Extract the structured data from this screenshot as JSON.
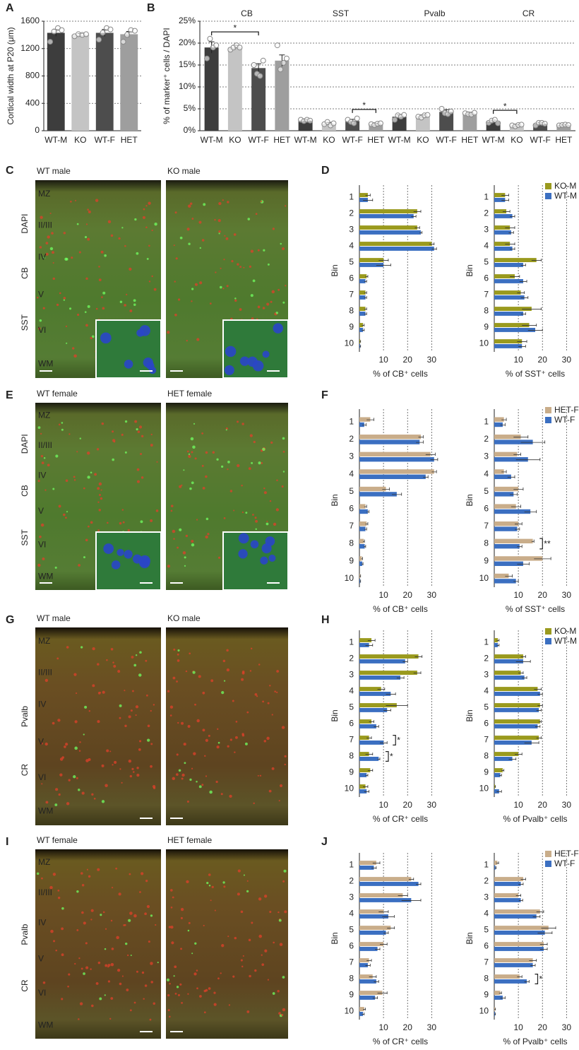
{
  "chart_data": [
    {
      "type": "bar",
      "panel": "A",
      "ylabel": "Cortical width at P20 (μm)",
      "categories": [
        "WT-M",
        "KO",
        "WT-F",
        "HET"
      ],
      "values": [
        1430,
        1400,
        1430,
        1410
      ],
      "errors": [
        50,
        20,
        50,
        40
      ],
      "points": [
        [
          1300,
          1450,
          1500,
          1470
        ],
        [
          1380,
          1410,
          1400,
          1410
        ],
        [
          1330,
          1430,
          1500,
          1480
        ],
        [
          1300,
          1400,
          1470,
          1460
        ]
      ],
      "colors": [
        "#3d3d3d",
        "#c4c4c4",
        "#4d4d4d",
        "#9e9e9e"
      ],
      "ylim": [
        0,
        1600
      ],
      "yticks": [
        0,
        400,
        800,
        1200,
        1600
      ],
      "grid": true
    },
    {
      "type": "grouped_bar",
      "panel": "B",
      "ylabel": "% of marker⁺ cells / DAPI",
      "colors": [
        "#3d3d3d",
        "#c4c4c4",
        "#4d4d4d",
        "#9e9e9e"
      ],
      "ylim": [
        0,
        25
      ],
      "yticks": [
        {
          "value": 0,
          "label": "0%"
        },
        {
          "value": 5,
          "label": "5%"
        },
        {
          "value": 10,
          "label": "10%"
        },
        {
          "value": 15,
          "label": "15%"
        },
        {
          "value": 20,
          "label": "20%"
        },
        {
          "value": 25,
          "label": "25%"
        }
      ],
      "grid": true,
      "groups": [
        {
          "name": "CB",
          "categories": [
            "WT-M",
            "KO",
            "WT-F",
            "HET"
          ],
          "values": [
            19,
            19,
            14.3,
            16
          ],
          "errors": [
            1.3,
            0.5,
            1,
            1.3
          ],
          "points": [
            [
              16.5,
              21,
              19,
              19.5
            ],
            [
              18.5,
              19,
              19.5,
              19
            ],
            [
              15,
              13,
              12.5,
              16
            ],
            [
              19.5,
              14,
              15.5,
              16.5
            ]
          ]
        },
        {
          "name": "SST",
          "categories": [
            "WT-M",
            "KO",
            "WT-F",
            "HET"
          ],
          "values": [
            2.3,
            1.6,
            2.2,
            1.5
          ],
          "errors": [
            0.3,
            0.3,
            0.4,
            0.2
          ],
          "points": [
            [
              2.5,
              2.2,
              2.5,
              2.3
            ],
            [
              1.5,
              2,
              1.2,
              1.7
            ],
            [
              2.5,
              2,
              1.7,
              2.8
            ],
            [
              1.5,
              1.3,
              1.6,
              1.7
            ]
          ]
        },
        {
          "name": "Pvalb",
          "categories": [
            "WT-M",
            "KO",
            "WT-F",
            "HET"
          ],
          "values": [
            3.2,
            3.3,
            4.3,
            3.9
          ],
          "errors": [
            0.4,
            0.3,
            0.5,
            0.2
          ],
          "points": [
            [
              2.5,
              3.5,
              3.2,
              3.6
            ],
            [
              3.2,
              3,
              3.5,
              3.6
            ],
            [
              5,
              4,
              3.8,
              4.4
            ],
            [
              4,
              3.8,
              3.7,
              4.1
            ]
          ]
        },
        {
          "name": "CR",
          "categories": [
            "WT-M",
            "KO",
            "WT-F",
            "HET"
          ],
          "values": [
            2.1,
            1.2,
            1.6,
            1.3
          ],
          "errors": [
            0.3,
            0.2,
            0.3,
            0.1
          ],
          "points": [
            [
              1.8,
              2.3,
              2.5,
              1.7
            ],
            [
              1.2,
              1,
              1.3,
              1.4
            ],
            [
              1.2,
              1.8,
              1.8,
              1.6
            ],
            [
              1.2,
              1.3,
              1.4,
              1.3
            ]
          ]
        }
      ],
      "significance": [
        {
          "group": "CB",
          "from": "WT-M",
          "to": "WT-F",
          "label": "*"
        },
        {
          "group": "SST",
          "from": "WT-F",
          "to": "HET",
          "label": "*"
        },
        {
          "group": "CR",
          "from": "WT-M",
          "to": "KO",
          "label": "*"
        }
      ]
    },
    {
      "type": "hbar",
      "panel": "D",
      "ylabel": "Bin",
      "xlabel": "% of CB⁺ cells",
      "categories": [
        "1",
        "2",
        "3",
        "4",
        "5",
        "6",
        "7",
        "8",
        "9",
        "10"
      ],
      "xlim": [
        0,
        34
      ],
      "xticks": [
        10,
        20,
        30
      ],
      "series": [
        {
          "color": "#9a9a1e",
          "values": [
            3.5,
            24,
            24,
            30,
            10,
            3,
            2.5,
            2.5,
            1.5,
            0.3
          ],
          "errors": [
            1,
            1.5,
            1,
            1,
            2,
            0.5,
            0.5,
            0.5,
            0.5,
            0.2
          ]
        },
        {
          "color": "#3b6fc1",
          "values": [
            3.5,
            22.5,
            25.5,
            31,
            10,
            2.5,
            2.5,
            2.5,
            1.5,
            0.3
          ],
          "errors": [
            2,
            1,
            0.5,
            1,
            3,
            0.5,
            0.5,
            0.5,
            0.5,
            0.2
          ]
        }
      ]
    },
    {
      "type": "hbar",
      "ylabel": "Bin",
      "xlabel": "% of SST⁺ cells",
      "categories": [
        "1",
        "2",
        "3",
        "4",
        "5",
        "6",
        "7",
        "8",
        "9",
        "10"
      ],
      "xlim": [
        0,
        34
      ],
      "xticks": [
        10,
        20,
        30
      ],
      "legend": "top-right",
      "series": [
        {
          "name": "KO-M",
          "color": "#9a9a1e",
          "values": [
            4.5,
            5,
            6.5,
            6.5,
            17.5,
            8.5,
            11,
            15.5,
            14.5,
            11.5
          ],
          "errors": [
            1.5,
            1.5,
            2,
            2,
            2,
            2,
            1.5,
            4,
            3,
            2
          ]
        },
        {
          "name": "WT-M",
          "color": "#3b6fc1",
          "values": [
            4.5,
            7.5,
            7,
            7.5,
            12,
            12,
            12.5,
            12,
            17,
            11.5
          ],
          "errors": [
            1.5,
            1,
            1,
            1,
            1,
            1.5,
            1.5,
            1,
            3,
            1.5
          ]
        }
      ]
    },
    {
      "type": "hbar",
      "panel": "F",
      "ylabel": "Bin",
      "xlabel": "% of CB⁺ cells",
      "categories": [
        "1",
        "2",
        "3",
        "4",
        "5",
        "6",
        "7",
        "8",
        "9",
        "10"
      ],
      "xlim": [
        0,
        34
      ],
      "xticks": [
        10,
        20,
        30
      ],
      "series": [
        {
          "color": "#c9ad8a",
          "values": [
            4.5,
            25.5,
            29.5,
            31,
            11,
            2.5,
            3,
            1.8,
            1,
            0.3
          ],
          "errors": [
            1.5,
            1,
            2,
            1,
            1.5,
            0.5,
            0.5,
            0.3,
            0.3,
            0.2
          ]
        },
        {
          "color": "#3b6fc1",
          "values": [
            2,
            25,
            31,
            27.5,
            15.5,
            3.5,
            2.5,
            2.2,
            1.2,
            0.3
          ],
          "errors": [
            0.8,
            1.5,
            1.5,
            1,
            2,
            0.5,
            0.5,
            0.4,
            0.3,
            0.2
          ]
        }
      ]
    },
    {
      "type": "hbar",
      "ylabel": "Bin",
      "xlabel": "% of SST⁺ cells",
      "categories": [
        "1",
        "2",
        "3",
        "4",
        "5",
        "6",
        "7",
        "8",
        "9",
        "10"
      ],
      "xlim": [
        0,
        34
      ],
      "xticks": [
        10,
        20,
        30
      ],
      "legend": "top-right",
      "series": [
        {
          "name": "HET-F",
          "color": "#c9ad8a",
          "values": [
            4,
            11,
            9.5,
            4,
            10,
            9,
            10,
            16,
            20,
            6
          ],
          "errors": [
            1,
            3,
            1.5,
            1,
            2,
            2,
            1.5,
            0.5,
            3.5,
            1.5
          ]
        },
        {
          "name": "WT-F",
          "color": "#3b6fc1",
          "values": [
            3.5,
            16,
            14,
            7,
            8,
            15,
            9.5,
            10.5,
            12,
            9
          ],
          "errors": [
            1,
            5,
            5,
            1.5,
            1.5,
            2.5,
            1,
            1,
            2.5,
            1
          ]
        }
      ],
      "significance": [
        {
          "category": "8",
          "label": "**"
        }
      ]
    },
    {
      "type": "hbar",
      "panel": "H",
      "ylabel": "Bin",
      "xlabel": "% of CR⁺ cells",
      "categories": [
        "1",
        "2",
        "3",
        "4",
        "5",
        "6",
        "7",
        "8",
        "9",
        "10"
      ],
      "xlim": [
        0,
        34
      ],
      "xticks": [
        10,
        20,
        30
      ],
      "series": [
        {
          "color": "#9a9a1e",
          "values": [
            5,
            24.5,
            24,
            9,
            15.5,
            5,
            4,
            4,
            4.5,
            2.5
          ],
          "errors": [
            1.5,
            1.5,
            1.5,
            1.5,
            4.5,
            1,
            1,
            1.5,
            1,
            1
          ]
        },
        {
          "color": "#3b6fc1",
          "values": [
            4,
            19,
            17,
            13,
            11.5,
            7,
            10,
            8,
            3,
            3
          ],
          "errors": [
            1.5,
            1,
            1.5,
            2,
            1.5,
            1,
            1.5,
            0.5,
            0.5,
            1
          ]
        }
      ],
      "significance": [
        {
          "category": "7",
          "label": "*"
        },
        {
          "category": "8",
          "label": "*"
        }
      ]
    },
    {
      "type": "hbar",
      "ylabel": "Bin",
      "xlabel": "% of Pvalb⁺ cells",
      "categories": [
        "1",
        "2",
        "3",
        "4",
        "5",
        "6",
        "7",
        "8",
        "9",
        "10"
      ],
      "xlim": [
        0,
        34
      ],
      "xticks": [
        10,
        20,
        30
      ],
      "legend": "top-right",
      "series": [
        {
          "name": "KO-M",
          "color": "#9a9a1e",
          "values": [
            1.5,
            12,
            11,
            18,
            19,
            19,
            18.5,
            10,
            3.5,
            0.3
          ],
          "errors": [
            0.5,
            1,
            1,
            1.5,
            1,
            0.5,
            1,
            1.5,
            0.5,
            0.2
          ]
        },
        {
          "name": "WT-M",
          "color": "#3b6fc1",
          "values": [
            1.5,
            12,
            12.5,
            19,
            18.5,
            18,
            15.5,
            7.5,
            2.5,
            2
          ],
          "errors": [
            0.5,
            3,
            1,
            1,
            1,
            1,
            3,
            1.5,
            0.5,
            1
          ]
        }
      ]
    },
    {
      "type": "hbar",
      "panel": "J",
      "ylabel": "Bin",
      "xlabel": "% of CR⁺ cells",
      "categories": [
        "1",
        "2",
        "3",
        "4",
        "5",
        "6",
        "7",
        "8",
        "9",
        "10"
      ],
      "xlim": [
        0,
        34
      ],
      "xticks": [
        10,
        20,
        30
      ],
      "series": [
        {
          "color": "#c9ad8a",
          "values": [
            7,
            21.5,
            18,
            10,
            13,
            10,
            4,
            5.5,
            9.5,
            2
          ],
          "errors": [
            1.5,
            1,
            2,
            2,
            1.5,
            1.5,
            1,
            1.5,
            2,
            0.5
          ]
        },
        {
          "color": "#3b6fc1",
          "values": [
            6,
            24.5,
            21.5,
            12,
            11,
            7.5,
            3.5,
            7,
            6.5,
            1.5
          ],
          "errors": [
            1,
            1,
            4,
            2.5,
            1,
            1,
            1,
            1,
            1,
            0.5
          ]
        }
      ]
    },
    {
      "type": "hbar",
      "ylabel": "Bin",
      "xlabel": "% of Pvalb⁺ cells",
      "categories": [
        "1",
        "2",
        "3",
        "4",
        "5",
        "6",
        "7",
        "8",
        "9",
        "10"
      ],
      "xlim": [
        0,
        34
      ],
      "xticks": [
        10,
        20,
        30
      ],
      "legend": "top-right",
      "series": [
        {
          "name": "HET-F",
          "color": "#c9ad8a",
          "values": [
            1.3,
            12,
            10,
            19,
            22.5,
            20.5,
            16,
            10.5,
            2.5,
            0.3
          ],
          "errors": [
            0.5,
            1,
            1,
            1.5,
            3,
            1.5,
            1.5,
            1,
            0.5,
            0.2
          ]
        },
        {
          "name": "WT-F",
          "color": "#3b6fc1",
          "values": [
            0.5,
            11,
            11,
            17.5,
            21,
            20.5,
            16,
            13.5,
            3.5,
            0.3
          ],
          "errors": [
            0.3,
            1,
            0.8,
            1.5,
            3,
            1.5,
            1,
            1,
            1,
            0.2
          ]
        }
      ],
      "significance": [
        {
          "category": "8",
          "label": "*"
        }
      ]
    }
  ],
  "figure_panels": [
    {
      "letter": "C",
      "images": [
        "WT male",
        "KO male"
      ],
      "stains": [
        {
          "name": "DAPI",
          "color": "#3550d0"
        },
        {
          "name": "CB",
          "color": "#e03030"
        },
        {
          "name": "SST",
          "color": "#3fbf3f"
        }
      ],
      "layers": [
        "MZ",
        "II/III",
        "IV",
        "V",
        "VI",
        "WM"
      ],
      "inset": true
    },
    {
      "letter": "E",
      "images": [
        "WT female",
        "HET female"
      ],
      "stains": [
        {
          "name": "DAPI",
          "color": "#3550d0"
        },
        {
          "name": "CB",
          "color": "#e03030"
        },
        {
          "name": "SST",
          "color": "#3fbf3f"
        }
      ],
      "layers": [
        "MZ",
        "II/III",
        "IV",
        "V",
        "VI",
        "WM"
      ],
      "inset": true
    },
    {
      "letter": "G",
      "images": [
        "WT male",
        "KO male"
      ],
      "stains": [
        {
          "name": "Pvalb",
          "color": "#e03030"
        },
        {
          "name": "CR",
          "color": "#3fbf3f"
        }
      ],
      "layers": [
        "MZ",
        "II/III",
        "IV",
        "V",
        "VI",
        "WM"
      ],
      "inset": false
    },
    {
      "letter": "I",
      "images": [
        "WT female",
        "HET female"
      ],
      "stains": [
        {
          "name": "Pvalb",
          "color": "#e03030"
        },
        {
          "name": "CR",
          "color": "#3fbf3f"
        }
      ],
      "layers": [
        "MZ",
        "II/III",
        "IV",
        "V",
        "VI",
        "WM"
      ],
      "inset": false
    }
  ]
}
